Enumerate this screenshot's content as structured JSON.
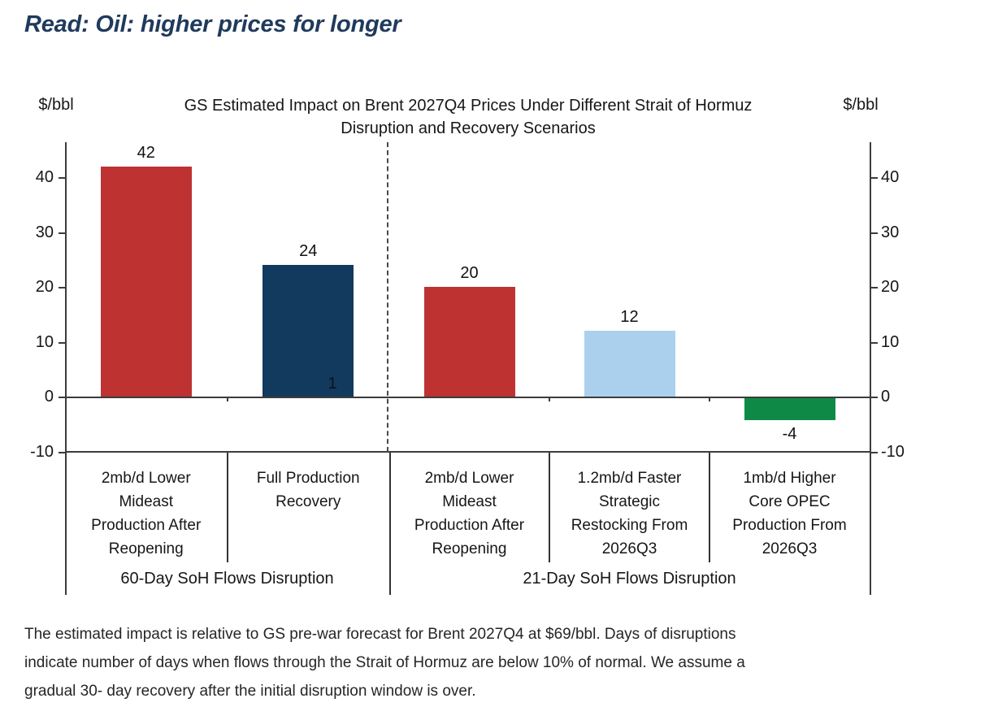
{
  "page": {
    "header": {
      "title": "Read: Oil: higher prices for longer",
      "color": "#1f3a5c"
    }
  },
  "chart_data": {
    "type": "bar",
    "title": "GS Estimated Impact on Brent 2027Q4 Prices Under Different Strait of Hormuz Disruption and Recovery Scenarios",
    "title_lines": [
      "GS Estimated Impact on Brent 2027Q4 Prices Under Different Strait of Hormuz",
      "Disruption and Recovery Scenarios"
    ],
    "axis_unit_left": "$/bbl",
    "axis_unit_right": "$/bbl",
    "ylim": [
      -10,
      46
    ],
    "yticks": [
      40,
      30,
      20,
      10,
      0,
      -10
    ],
    "grid": false,
    "legend": false,
    "colors": {
      "red": "#be3232",
      "navy": "#12395e",
      "light_blue": "#abd0ee",
      "green": "#0e8a46"
    },
    "groups": [
      {
        "label": "60-Day SoH Flows Disruption",
        "bars": [
          {
            "category": "2mb/d Lower Mideast Production After Reopening",
            "category_lines": [
              "2mb/d Lower",
              "Mideast",
              "Production After",
              "Reopening"
            ],
            "value": 42,
            "color": "#be3232"
          },
          {
            "category": "Full Production Recovery",
            "category_lines": [
              "Full Production",
              "Recovery"
            ],
            "value": 24,
            "color": "#12395e"
          }
        ]
      },
      {
        "label": "21-Day SoH Flows Disruption",
        "bars": [
          {
            "category": "2mb/d Lower Mideast Production After Reopening",
            "category_lines": [
              "2mb/d Lower",
              "Mideast",
              "Production After",
              "Reopening"
            ],
            "value": 20,
            "color": "#be3232"
          },
          {
            "category": "1.2mb/d Faster Strategic Restocking From 2026Q3",
            "category_lines": [
              "1.2mb/d Faster",
              "Strategic",
              "Restocking From",
              "2026Q3"
            ],
            "value": 12,
            "color": "#abd0ee"
          },
          {
            "category": "1mb/d Higher Core OPEC Production From 2026Q3",
            "category_lines": [
              "1mb/d Higher",
              "Core OPEC",
              "Production From",
              "2026Q3"
            ],
            "value": -4,
            "color": "#0e8a46"
          }
        ]
      }
    ],
    "extra_label": "1"
  },
  "footnote": {
    "lines": [
      "The estimated impact is relative to GS pre-war forecast for Brent 2027Q4 at $69/bbl. Days of disruptions",
      "indicate number of days when flows through the Strait of Hormuz are below 10% of normal. We assume a",
      "gradual 30- day recovery after the initial disruption window is over."
    ]
  }
}
